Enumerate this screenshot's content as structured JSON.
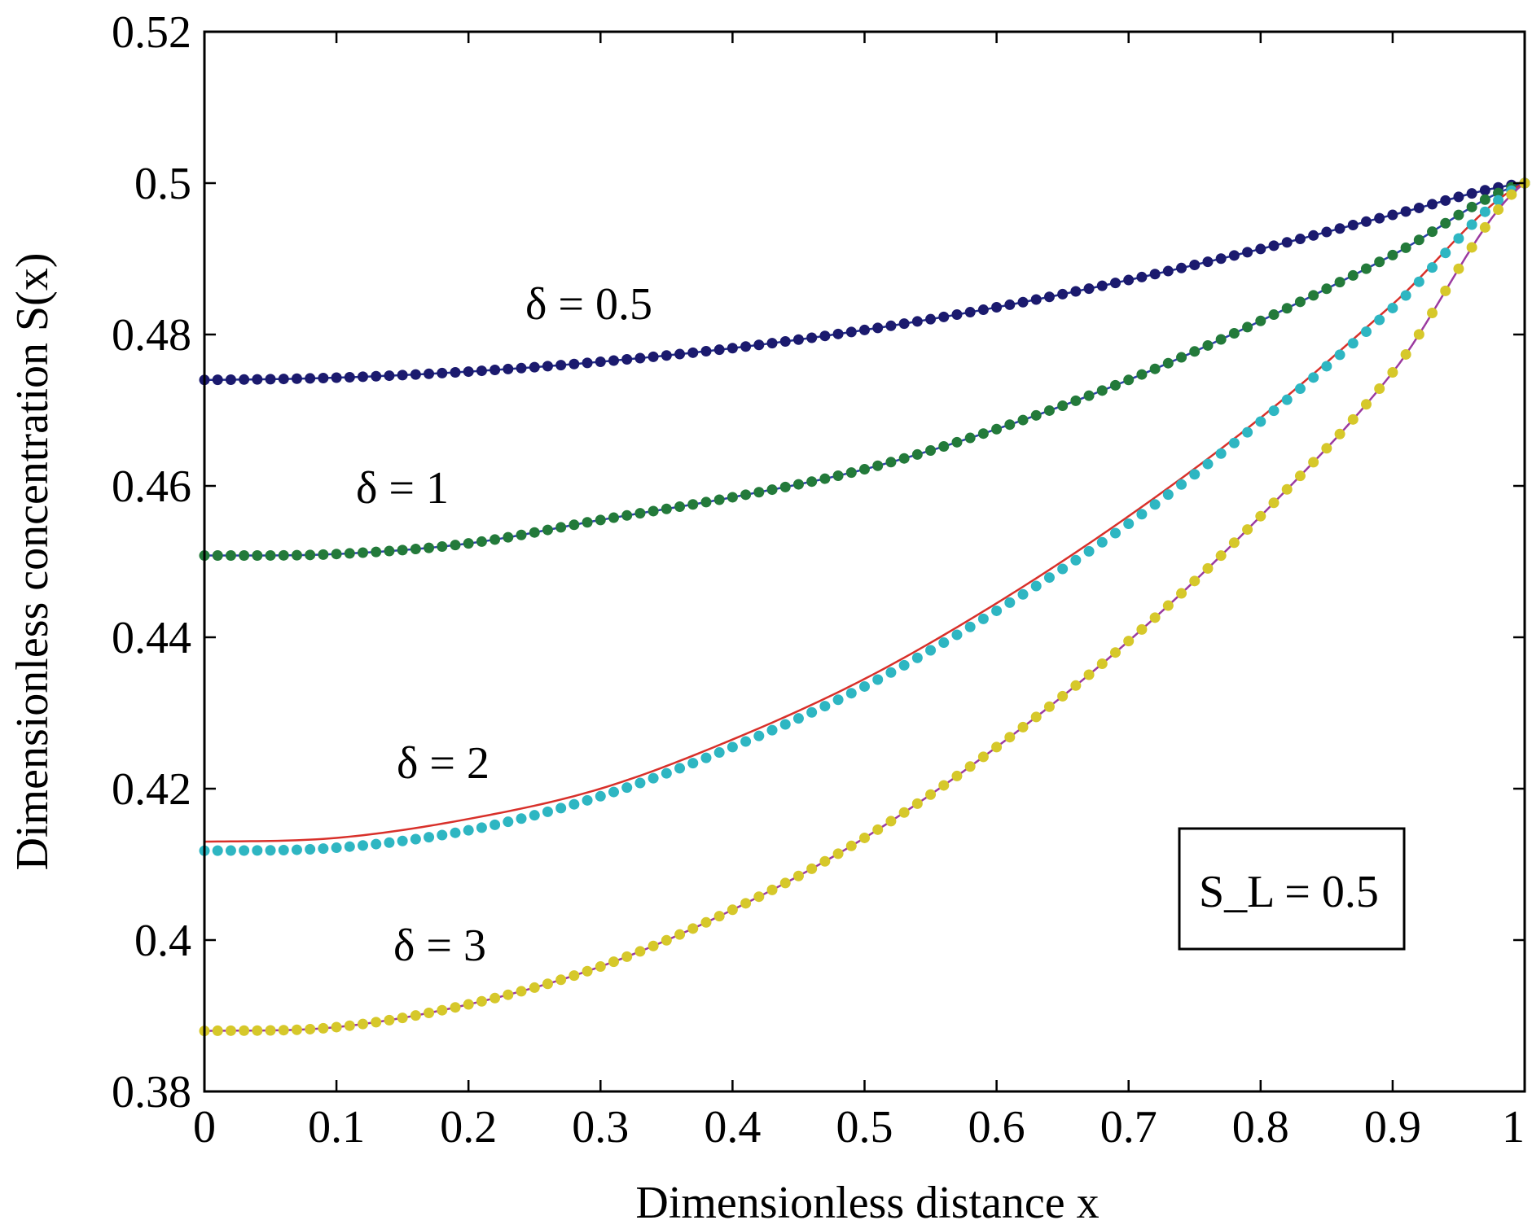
{
  "chart_data": {
    "type": "line",
    "title": "",
    "xlabel": "Dimensionless distance x",
    "ylabel": "Dimensionless concentration S(x)",
    "xlim": [
      0,
      1
    ],
    "ylim": [
      0.38,
      0.52
    ],
    "x_ticks": [
      "0",
      "0.1",
      "0.2",
      "0.3",
      "0.4",
      "0.5",
      "0.6",
      "0.7",
      "0.8",
      "0.9",
      "1"
    ],
    "y_ticks": [
      "0.38",
      "0.4",
      "0.42",
      "0.44",
      "0.46",
      "0.48",
      "0.5",
      "0.52"
    ],
    "grid": false,
    "legend_box": {
      "text": "S_L = 0.5",
      "placement": "bottom-right"
    },
    "annotations": [
      "δ = 0.5",
      "δ = 1",
      "δ = 2",
      "δ = 3"
    ],
    "x": [
      0,
      0.1,
      0.2,
      0.3,
      0.4,
      0.5,
      0.6,
      0.7,
      0.8,
      0.9,
      1.0
    ],
    "series": [
      {
        "delta": "0.5",
        "line_color": "#1f2a8a",
        "marker_color": "#1b1a6e",
        "values": [
          0.474,
          0.4743,
          0.4751,
          0.4764,
          0.4782,
          0.4806,
          0.4836,
          0.4872,
          0.4913,
          0.4958,
          0.5
        ]
      },
      {
        "delta": "1",
        "line_color": "#2b3fa8",
        "marker_color": "#237a3a",
        "values": [
          0.4508,
          0.451,
          0.4524,
          0.4555,
          0.4585,
          0.4622,
          0.4675,
          0.474,
          0.4818,
          0.4905,
          0.5
        ]
      },
      {
        "delta": "2 (line)",
        "line_color": "#d8302a",
        "marker_color": "",
        "values": [
          0.413,
          0.4135,
          0.416,
          0.42,
          0.4265,
          0.4345,
          0.4445,
          0.456,
          0.469,
          0.484,
          0.5
        ]
      },
      {
        "delta": "2 (markers)",
        "line_color": "",
        "marker_color": "#2eb6c2",
        "values": [
          0.4118,
          0.4122,
          0.4145,
          0.419,
          0.4255,
          0.4335,
          0.4435,
          0.455,
          0.4685,
          0.4835,
          0.5
        ]
      },
      {
        "delta": "3",
        "line_color": "#9b3aa0",
        "marker_color": "#d6c82a",
        "values": [
          0.388,
          0.3885,
          0.3915,
          0.3965,
          0.404,
          0.4135,
          0.4255,
          0.4395,
          0.456,
          0.475,
          0.5
        ]
      }
    ]
  }
}
